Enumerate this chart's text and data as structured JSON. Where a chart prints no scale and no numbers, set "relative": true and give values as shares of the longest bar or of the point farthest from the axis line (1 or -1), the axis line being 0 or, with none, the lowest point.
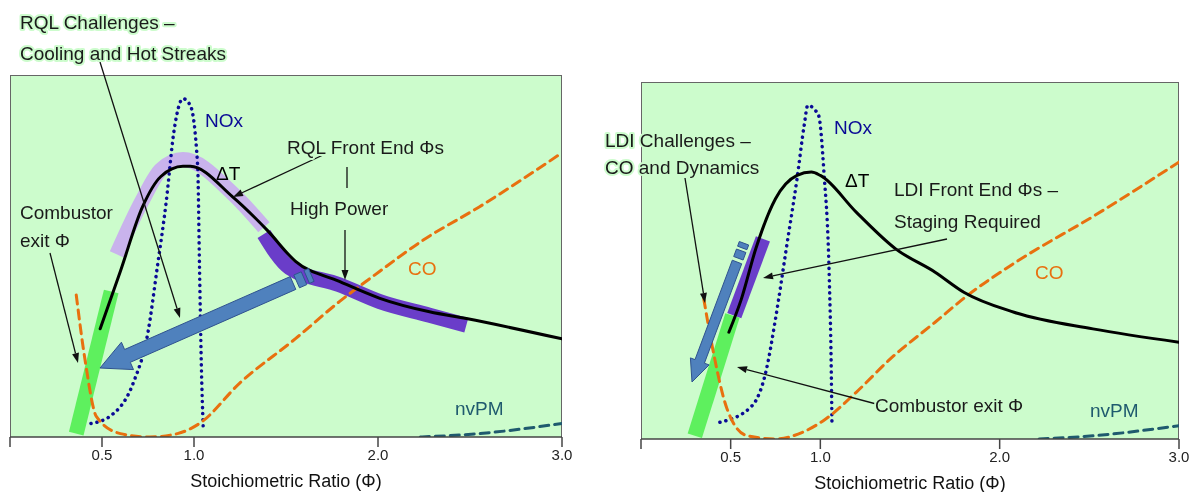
{
  "chart_data": [
    {
      "type": "line",
      "xlabel": "Stoichiometric Ratio (Φ)",
      "xlim": [
        0,
        3
      ],
      "xticks": [
        {
          "value": 0,
          "label": null
        },
        {
          "value": 0.5,
          "label": "0.5"
        },
        {
          "value": 1,
          "label": "1.0"
        },
        {
          "value": 2,
          "label": "2.0"
        },
        {
          "value": 3,
          "label": "3.0"
        }
      ],
      "relative": true,
      "annotations": [
        "RQL Challenges –\nCooling and Hot Streaks",
        "RQL Front End Φs",
        "High Power",
        "Combustor\nexit Φ"
      ],
      "series": [
        {
          "color": "#c9b3ec",
          "x": [
            0.58,
            0.72,
            0.82,
            0.94,
            1.21,
            1.38
          ],
          "values": [
            0.54,
            0.7,
            0.79,
            0.82,
            0.72,
            0.62
          ]
        },
        {
          "color": "#6a3dc9",
          "x": [
            1.38,
            1.52,
            1.79,
            2.01,
            2.28,
            2.48
          ],
          "values": [
            0.6,
            0.5,
            0.45,
            0.4,
            0.36,
            0.33
          ]
        },
        {
          "color": "#5ef05e",
          "x": [
            0.36,
            0.55
          ],
          "values": [
            0.01,
            0.43
          ]
        },
        {
          "name": "NOx",
          "color": "#0a0a96",
          "line_style": "dotted",
          "x": [
            0.44,
            0.54,
            0.67,
            0.75,
            0.8,
            0.85,
            0.89,
            0.94,
            0.98,
            1.02,
            1.03,
            1.04,
            1.05
          ],
          "values": [
            0.04,
            0.06,
            0.16,
            0.31,
            0.5,
            0.7,
            0.9,
            1.0,
            0.98,
            0.8,
            0.5,
            0.21,
            0.03
          ]
        },
        {
          "name": "CO",
          "color": "#e8700f",
          "line_style": "dashed",
          "x": [
            0.36,
            0.41,
            0.47,
            0.6,
            0.76,
            0.91,
            1.03,
            1.25,
            1.55,
            1.79,
            2.01,
            2.24,
            2.55,
            3.0
          ],
          "values": [
            0.42,
            0.22,
            0.06,
            0.01,
            0.0,
            0.01,
            0.04,
            0.16,
            0.29,
            0.4,
            0.49,
            0.58,
            0.68,
            0.84
          ]
        },
        {
          "name": "ΔT",
          "color": "#000000",
          "line_style": "solid",
          "x": [
            0.49,
            0.6,
            0.72,
            0.82,
            0.94,
            0.98,
            1.21,
            1.4,
            1.55,
            1.79,
            2.01,
            2.28,
            2.48,
            3.0
          ],
          "values": [
            0.32,
            0.49,
            0.68,
            0.77,
            0.8,
            0.8,
            0.71,
            0.61,
            0.52,
            0.46,
            0.41,
            0.37,
            0.35,
            0.29
          ]
        },
        {
          "name": "nvPM",
          "color": "#1f5a6e",
          "line_style": "dashed",
          "x": [
            2.23,
            2.55,
            3.0
          ],
          "values": [
            0.0,
            0.01,
            0.04
          ]
        }
      ]
    },
    {
      "type": "line",
      "xlabel": "Stoichiometric Ratio (Φ)",
      "xlim": [
        0,
        3
      ],
      "xticks": [
        {
          "value": 0,
          "label": null
        },
        {
          "value": 0.5,
          "label": "0.5"
        },
        {
          "value": 1,
          "label": "1.0"
        },
        {
          "value": 2,
          "label": "2.0"
        },
        {
          "value": 3,
          "label": "3.0"
        }
      ],
      "relative": true,
      "annotations": [
        "LDI Challenges –\nCO and Dynamics",
        "LDI Front End Φs –\nStaging Required",
        "Combustor exit Φ"
      ],
      "series": [
        {
          "color": "#6a3dc9",
          "x": [
            0.52,
            0.68
          ],
          "values": [
            0.37,
            0.6
          ]
        },
        {
          "color": "#5ef05e",
          "x": [
            0.3,
            0.51
          ],
          "values": [
            0.01,
            0.37
          ]
        },
        {
          "name": "NOx",
          "color": "#0a0a96",
          "line_style": "dotted",
          "x": [
            0.44,
            0.62,
            0.7,
            0.75,
            0.81,
            0.87,
            0.91,
            0.93,
            0.99,
            1.02,
            1.05,
            1.06,
            1.065
          ],
          "values": [
            0.05,
            0.1,
            0.21,
            0.36,
            0.57,
            0.78,
            0.94,
            1.0,
            0.97,
            0.8,
            0.48,
            0.24,
            0.04
          ]
        },
        {
          "name": "CO",
          "color": "#e8700f",
          "line_style": "dashed",
          "x": [
            0.35,
            0.4,
            0.48,
            0.59,
            0.75,
            0.9,
            1.03,
            1.2,
            1.39,
            1.64,
            1.82,
            2.09,
            2.53,
            3.0
          ],
          "values": [
            0.42,
            0.27,
            0.09,
            0.01,
            0.0,
            0.02,
            0.06,
            0.14,
            0.24,
            0.35,
            0.43,
            0.53,
            0.67,
            0.83
          ]
        },
        {
          "name": "ΔT",
          "color": "#000000",
          "line_style": "solid",
          "x": [
            0.49,
            0.56,
            0.64,
            0.75,
            0.87,
            0.95,
            1.0,
            1.2,
            1.42,
            1.64,
            1.8,
            2.08,
            2.52,
            3.0
          ],
          "values": [
            0.32,
            0.42,
            0.57,
            0.72,
            0.79,
            0.8,
            0.79,
            0.68,
            0.57,
            0.5,
            0.44,
            0.38,
            0.33,
            0.29
          ]
        },
        {
          "name": "nvPM",
          "color": "#1f5a6e",
          "line_style": "dashed",
          "x": [
            2.22,
            2.53,
            3.0
          ],
          "values": [
            0.0,
            0.01,
            0.04
          ]
        }
      ]
    }
  ]
}
